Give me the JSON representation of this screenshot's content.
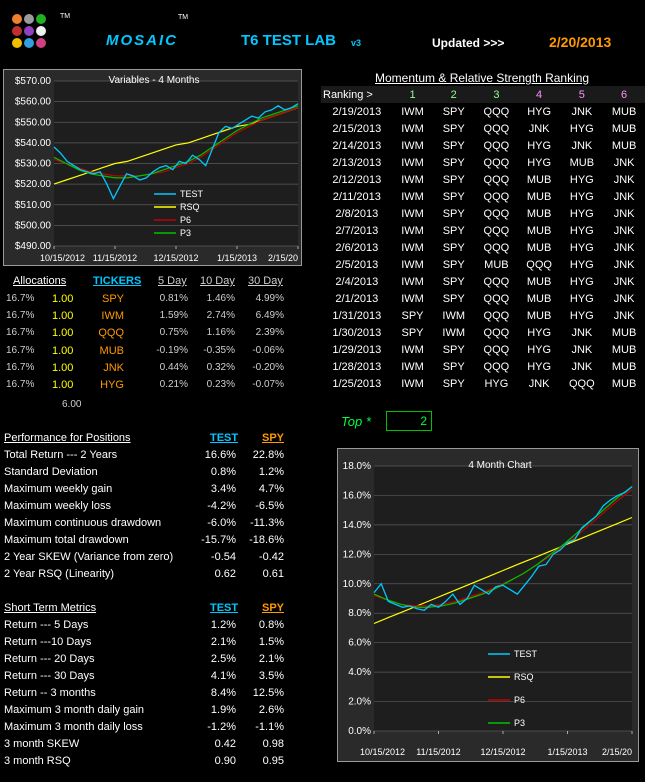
{
  "colors": {
    "accent_cyan": "#00c8ff",
    "title_yellow": "#ffff00",
    "date_orange": "#ff9900",
    "test_line": "#00c8ff",
    "rsq_line": "#ffff00",
    "p6_line": "#c00000",
    "p3_line": "#00c000"
  },
  "logo": {
    "tm1": "TM",
    "tm2": "TM",
    "dots": [
      "#f08030",
      "#9a9a9a",
      "#20b020",
      "#c03030",
      "#9040c0",
      "#f0f0f0",
      "#f0c000",
      "#30a0e0",
      "#d04080"
    ]
  },
  "header": {
    "title_mosaic": "MOSAIC",
    "title_lab": "T6  TEST LAB",
    "version": "v3",
    "updated_label": "Updated >>>",
    "updated_date": "2/20/2013"
  },
  "chart1": {
    "title": "Variables - 4 Months"
  },
  "chart2": {
    "title": "4 Month Chart"
  },
  "chart_data": [
    {
      "type": "line",
      "title": "Variables - 4 Months",
      "y_ticks": [
        "$570.00",
        "$560.00",
        "$550.00",
        "$540.00",
        "$530.00",
        "$520.00",
        "$510.00",
        "$500.00",
        "$490.00"
      ],
      "x_ticks": [
        "10/15/2012",
        "11/15/2012",
        "12/15/2012",
        "1/15/2013",
        "2/15/20"
      ],
      "ylim": [
        490,
        570
      ],
      "legend": [
        "TEST",
        "RSQ",
        "P6",
        "P3"
      ],
      "series": [
        {
          "name": "TEST",
          "values": [
            538,
            535,
            531,
            529,
            527,
            526,
            525,
            526,
            520,
            513,
            519,
            525,
            524,
            522,
            523,
            526,
            528,
            529,
            527,
            531,
            530,
            534,
            532,
            529,
            537,
            545,
            548,
            547,
            549,
            551,
            553,
            552,
            555,
            556,
            558,
            556,
            557,
            559
          ]
        },
        {
          "name": "RSQ",
          "values": [
            520,
            522,
            524,
            526,
            528,
            530,
            531,
            533,
            535,
            537,
            539,
            540,
            542,
            544,
            546,
            548,
            549,
            551,
            553,
            555,
            557
          ]
        },
        {
          "name": "P6",
          "values": [
            532,
            530,
            528,
            526,
            525,
            524,
            524,
            524,
            525,
            526,
            528,
            530,
            533,
            537,
            541,
            545,
            548,
            551,
            553,
            555,
            557
          ]
        },
        {
          "name": "P3",
          "values": [
            533,
            530,
            527,
            525,
            524,
            523,
            523,
            524,
            525,
            527,
            529,
            531,
            534,
            538,
            542,
            546,
            549,
            552,
            554,
            556,
            558
          ]
        }
      ]
    },
    {
      "type": "line",
      "title": "4 Month Chart",
      "y_ticks": [
        "18.0%",
        "16.0%",
        "14.0%",
        "12.0%",
        "10.0%",
        "8.0%",
        "6.0%",
        "4.0%",
        "2.0%",
        "0.0%"
      ],
      "x_ticks": [
        "10/15/2012",
        "11/15/2012",
        "12/15/2012",
        "1/15/2013",
        "2/15/20"
      ],
      "ylim": [
        0,
        18
      ],
      "legend": [
        "TEST",
        "RSQ",
        "P6",
        "P3"
      ],
      "series": [
        {
          "name": "TEST",
          "values": [
            9.4,
            10.0,
            8.8,
            8.6,
            8.4,
            8.5,
            8.3,
            8.2,
            8.6,
            8.4,
            8.8,
            9.3,
            8.6,
            9.0,
            9.9,
            9.6,
            9.3,
            9.8,
            9.9,
            9.6,
            9.3,
            9.9,
            10.5,
            11.2,
            11.3,
            12.0,
            12.3,
            12.8,
            13.0,
            13.8,
            14.2,
            14.6,
            15.3,
            15.7,
            16.0,
            16.2,
            16.6
          ]
        },
        {
          "name": "RSQ",
          "values": [
            7.3,
            7.7,
            8.1,
            8.5,
            8.9,
            9.3,
            9.7,
            10.1,
            10.5,
            10.9,
            11.3,
            11.7,
            12.1,
            12.5,
            12.9,
            13.3,
            13.7,
            14.1,
            14.5
          ]
        },
        {
          "name": "P6",
          "values": [
            9.2,
            8.9,
            8.6,
            8.5,
            8.5,
            8.6,
            8.8,
            9.1,
            9.4,
            9.8,
            10.2,
            10.7,
            11.3,
            11.9,
            12.6,
            13.3,
            14.1,
            14.9,
            15.7,
            16.4
          ]
        },
        {
          "name": "P3",
          "values": [
            9.3,
            8.9,
            8.6,
            8.4,
            8.4,
            8.5,
            8.7,
            9.0,
            9.3,
            9.7,
            10.2,
            10.7,
            11.3,
            12.0,
            12.7,
            13.5,
            14.3,
            15.1,
            15.9,
            16.6
          ]
        }
      ]
    }
  ],
  "allocations": {
    "headers": [
      "Allocations",
      "TICKERS",
      "5 Day",
      "10 Day",
      "30 Day"
    ],
    "rows": [
      {
        "pct": "16.7%",
        "units": "1.00",
        "ticker": "SPY",
        "d5": "0.81%",
        "d10": "1.46%",
        "d30": "4.99%"
      },
      {
        "pct": "16.7%",
        "units": "1.00",
        "ticker": "IWM",
        "d5": "1.59%",
        "d10": "2.74%",
        "d30": "6.49%"
      },
      {
        "pct": "16.7%",
        "units": "1.00",
        "ticker": "QQQ",
        "d5": "0.75%",
        "d10": "1.16%",
        "d30": "2.39%"
      },
      {
        "pct": "16.7%",
        "units": "1.00",
        "ticker": "MUB",
        "d5": "-0.19%",
        "d10": "-0.35%",
        "d30": "-0.06%"
      },
      {
        "pct": "16.7%",
        "units": "1.00",
        "ticker": "JNK",
        "d5": "0.44%",
        "d10": "0.32%",
        "d30": "-0.20%"
      },
      {
        "pct": "16.7%",
        "units": "1.00",
        "ticker": "HYG",
        "d5": "0.21%",
        "d10": "0.23%",
        "d30": "-0.07%"
      }
    ],
    "total": "6.00"
  },
  "ranking": {
    "title": "Momentum & Relative Strength Ranking",
    "header": [
      "Ranking >",
      "1",
      "2",
      "3",
      "4",
      "5",
      "6"
    ],
    "rows": [
      [
        "2/19/2013",
        "IWM",
        "SPY",
        "QQQ",
        "HYG",
        "JNK",
        "MUB"
      ],
      [
        "2/15/2013",
        "IWM",
        "SPY",
        "QQQ",
        "JNK",
        "HYG",
        "MUB"
      ],
      [
        "2/14/2013",
        "IWM",
        "SPY",
        "QQQ",
        "HYG",
        "JNK",
        "MUB"
      ],
      [
        "2/13/2013",
        "IWM",
        "SPY",
        "QQQ",
        "HYG",
        "MUB",
        "JNK"
      ],
      [
        "2/12/2013",
        "IWM",
        "SPY",
        "QQQ",
        "MUB",
        "HYG",
        "JNK"
      ],
      [
        "2/11/2013",
        "IWM",
        "SPY",
        "QQQ",
        "MUB",
        "HYG",
        "JNK"
      ],
      [
        "2/8/2013",
        "IWM",
        "SPY",
        "QQQ",
        "MUB",
        "HYG",
        "JNK"
      ],
      [
        "2/7/2013",
        "IWM",
        "SPY",
        "QQQ",
        "MUB",
        "HYG",
        "JNK"
      ],
      [
        "2/6/2013",
        "IWM",
        "SPY",
        "QQQ",
        "MUB",
        "HYG",
        "JNK"
      ],
      [
        "2/5/2013",
        "IWM",
        "SPY",
        "MUB",
        "QQQ",
        "HYG",
        "JNK"
      ],
      [
        "2/4/2013",
        "IWM",
        "SPY",
        "QQQ",
        "MUB",
        "HYG",
        "JNK"
      ],
      [
        "2/1/2013",
        "IWM",
        "SPY",
        "QQQ",
        "MUB",
        "HYG",
        "JNK"
      ],
      [
        "1/31/2013",
        "SPY",
        "IWM",
        "QQQ",
        "MUB",
        "HYG",
        "JNK"
      ],
      [
        "1/30/2013",
        "SPY",
        "IWM",
        "QQQ",
        "HYG",
        "JNK",
        "MUB"
      ],
      [
        "1/29/2013",
        "IWM",
        "SPY",
        "QQQ",
        "HYG",
        "JNK",
        "MUB"
      ],
      [
        "1/28/2013",
        "IWM",
        "SPY",
        "QQQ",
        "HYG",
        "JNK",
        "MUB"
      ],
      [
        "1/25/2013",
        "IWM",
        "SPY",
        "HYG",
        "JNK",
        "QQQ",
        "MUB"
      ]
    ],
    "header_colors": [
      "#ffffff",
      "#90ff90",
      "#90ff90",
      "#90ff90",
      "#ff90ff",
      "#ff90ff",
      "#ff90ff"
    ]
  },
  "top": {
    "label": "Top *",
    "value": "2"
  },
  "performance": {
    "title": "Performance for Positions",
    "col1": "TEST",
    "col2": "SPY",
    "rows": [
      [
        "Total Return --- 2 Years",
        "16.6%",
        "22.8%"
      ],
      [
        "Standard Deviation",
        "0.8%",
        "1.2%"
      ],
      [
        "Maximum weekly gain",
        "3.4%",
        "4.7%"
      ],
      [
        "Maximum weekly loss",
        "-4.2%",
        "-6.5%"
      ],
      [
        "Maximum continuous drawdown",
        "-6.0%",
        "-11.3%"
      ],
      [
        "Maximum total drawdown",
        "-15.7%",
        "-18.6%"
      ],
      [
        "2 Year SKEW  (Variance from zero)",
        "-0.54",
        "-0.42"
      ],
      [
        "2 Year RSQ  (Linearity)",
        "0.62",
        "0.61"
      ]
    ]
  },
  "short_term": {
    "title": "Short Term Metrics",
    "col1": "TEST",
    "col2": "SPY",
    "rows": [
      [
        "Return --- 5 Days",
        "1.2%",
        "0.8%"
      ],
      [
        "Return ---10 Days",
        "2.1%",
        "1.5%"
      ],
      [
        "Return --- 20 Days",
        "2.5%",
        "2.1%"
      ],
      [
        "Return --- 30 Days",
        "4.1%",
        "3.5%"
      ],
      [
        "Return -- 3 months",
        "8.4%",
        "12.5%"
      ],
      [
        "Maximum 3 month daily gain",
        "1.9%",
        "2.6%"
      ],
      [
        "Maximum 3 month daily loss",
        "-1.2%",
        "-1.1%"
      ],
      [
        "3 month SKEW",
        "0.42",
        "0.98"
      ],
      [
        "3 month RSQ",
        "0.90",
        "0.95"
      ]
    ]
  }
}
